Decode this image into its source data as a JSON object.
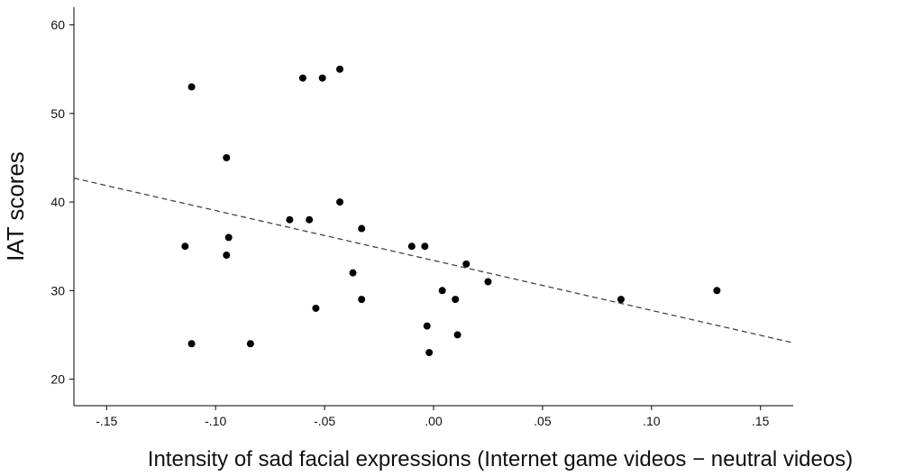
{
  "chart_data": {
    "type": "scatter",
    "xlabel": "Intensity of sad facial expressions (Internet game videos − neutral videos)",
    "ylabel": "IAT scores",
    "xlim": [
      -0.165,
      0.165
    ],
    "ylim": [
      17,
      62
    ],
    "x_ticks": [
      -0.15,
      -0.1,
      -0.05,
      0.0,
      0.05,
      0.1,
      0.15
    ],
    "x_tick_labels": [
      "-.15",
      "-.10",
      "-.05",
      ".00",
      ".05",
      ".10",
      ".15"
    ],
    "y_ticks": [
      20,
      30,
      40,
      50,
      60
    ],
    "y_tick_labels": [
      "20",
      "30",
      "40",
      "50",
      "60"
    ],
    "grid": false,
    "points": [
      {
        "x": -0.111,
        "y": 53
      },
      {
        "x": -0.095,
        "y": 45
      },
      {
        "x": -0.114,
        "y": 35
      },
      {
        "x": -0.094,
        "y": 36
      },
      {
        "x": -0.095,
        "y": 34
      },
      {
        "x": -0.111,
        "y": 24
      },
      {
        "x": -0.084,
        "y": 24
      },
      {
        "x": -0.06,
        "y": 54
      },
      {
        "x": -0.051,
        "y": 54
      },
      {
        "x": -0.043,
        "y": 55
      },
      {
        "x": -0.043,
        "y": 40
      },
      {
        "x": -0.066,
        "y": 38
      },
      {
        "x": -0.057,
        "y": 38
      },
      {
        "x": -0.033,
        "y": 37
      },
      {
        "x": -0.037,
        "y": 32
      },
      {
        "x": -0.033,
        "y": 29
      },
      {
        "x": -0.054,
        "y": 28
      },
      {
        "x": -0.01,
        "y": 35
      },
      {
        "x": -0.004,
        "y": 35
      },
      {
        "x": 0.015,
        "y": 33
      },
      {
        "x": 0.025,
        "y": 31
      },
      {
        "x": 0.004,
        "y": 30
      },
      {
        "x": 0.01,
        "y": 29
      },
      {
        "x": -0.003,
        "y": 26
      },
      {
        "x": 0.011,
        "y": 25
      },
      {
        "x": -0.002,
        "y": 23
      },
      {
        "x": 0.086,
        "y": 29
      },
      {
        "x": 0.13,
        "y": 30
      }
    ],
    "fit_line": {
      "x": [
        -0.165,
        0.165
      ],
      "y": [
        42.7,
        24.1
      ],
      "style": "dashed"
    },
    "colors": {
      "points": "#000000",
      "fit_line": "#444444",
      "axis": "#000000"
    }
  }
}
